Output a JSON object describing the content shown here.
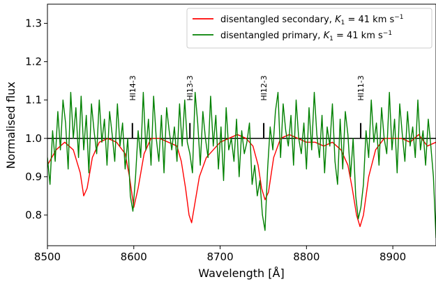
{
  "chart_data": {
    "type": "line",
    "title": "",
    "xlabel": "Wavelength [Å]",
    "ylabel": "Normalised flux",
    "xlim": [
      8500,
      8950
    ],
    "ylim": [
      0.72,
      1.35
    ],
    "xticks": [
      "8500",
      "8600",
      "8700",
      "8800",
      "8900"
    ],
    "xtick_values": [
      8500,
      8600,
      8700,
      8800,
      8900
    ],
    "yticks": [
      "0.8",
      "0.9",
      "1.0",
      "1.1",
      "1.2",
      "1.3"
    ],
    "ytick_values": [
      0.8,
      0.9,
      1.0,
      1.1,
      1.2,
      1.3
    ],
    "grid": false,
    "legend_position": "top-right",
    "reference_line": 1.0,
    "series": [
      {
        "name": "disentangled secondary, K₁ = 41 km s⁻¹",
        "color": "#ff0000",
        "x": [
          8500,
          8510,
          8520,
          8530,
          8538,
          8542,
          8546,
          8552,
          8560,
          8570,
          8580,
          8590,
          8595,
          8600,
          8605,
          8612,
          8620,
          8630,
          8640,
          8650,
          8655,
          8660,
          8664,
          8667,
          8670,
          8676,
          8684,
          8692,
          8700,
          8710,
          8720,
          8730,
          8738,
          8744,
          8748,
          8752,
          8756,
          8762,
          8770,
          8780,
          8790,
          8800,
          8810,
          8820,
          8830,
          8840,
          8848,
          8853,
          8858,
          8862,
          8866,
          8872,
          8880,
          8890,
          8900,
          8910,
          8920,
          8930,
          8940,
          8950
        ],
        "y": [
          0.93,
          0.97,
          0.99,
          0.97,
          0.91,
          0.85,
          0.87,
          0.95,
          0.99,
          1.0,
          0.99,
          0.96,
          0.9,
          0.82,
          0.87,
          0.96,
          1.0,
          1.0,
          0.99,
          0.98,
          0.94,
          0.87,
          0.8,
          0.78,
          0.82,
          0.9,
          0.95,
          0.97,
          0.99,
          1.0,
          1.01,
          1.0,
          0.98,
          0.93,
          0.87,
          0.84,
          0.86,
          0.95,
          1.0,
          1.01,
          1.0,
          0.99,
          0.99,
          0.98,
          0.99,
          0.97,
          0.93,
          0.87,
          0.8,
          0.77,
          0.8,
          0.9,
          0.97,
          1.0,
          1.0,
          1.0,
          0.99,
          1.01,
          0.98,
          0.99
        ]
      },
      {
        "name": "disentangled primary, K₁ = 41 km s⁻¹",
        "color": "#008000",
        "x": [
          8500,
          8503,
          8506,
          8509,
          8512,
          8515,
          8518,
          8521,
          8524,
          8527,
          8530,
          8533,
          8536,
          8539,
          8542,
          8545,
          8548,
          8551,
          8554,
          8557,
          8560,
          8563,
          8566,
          8569,
          8572,
          8575,
          8578,
          8581,
          8584,
          8587,
          8590,
          8593,
          8596,
          8599,
          8602,
          8605,
          8608,
          8611,
          8614,
          8617,
          8620,
          8623,
          8626,
          8629,
          8632,
          8635,
          8638,
          8641,
          8644,
          8647,
          8650,
          8653,
          8656,
          8659,
          8662,
          8665,
          8668,
          8671,
          8674,
          8677,
          8680,
          8683,
          8686,
          8689,
          8692,
          8695,
          8698,
          8701,
          8704,
          8707,
          8710,
          8713,
          8716,
          8719,
          8722,
          8725,
          8728,
          8731,
          8734,
          8737,
          8740,
          8743,
          8746,
          8749,
          8752,
          8755,
          8758,
          8761,
          8764,
          8767,
          8770,
          8773,
          8776,
          8779,
          8782,
          8785,
          8788,
          8791,
          8794,
          8797,
          8800,
          8803,
          8806,
          8809,
          8812,
          8815,
          8818,
          8821,
          8824,
          8827,
          8830,
          8833,
          8836,
          8839,
          8842,
          8845,
          8848,
          8851,
          8854,
          8857,
          8860,
          8863,
          8866,
          8869,
          8872,
          8875,
          8878,
          8881,
          8884,
          8887,
          8890,
          8893,
          8896,
          8899,
          8902,
          8905,
          8908,
          8911,
          8914,
          8917,
          8920,
          8923,
          8926,
          8929,
          8932,
          8935,
          8938,
          8941,
          8944,
          8947,
          8950
        ],
        "y": [
          0.95,
          0.88,
          1.02,
          0.94,
          1.07,
          0.97,
          1.1,
          1.04,
          0.92,
          1.12,
          1.0,
          1.08,
          0.95,
          1.11,
          0.97,
          1.06,
          0.91,
          1.09,
          1.02,
          0.96,
          1.1,
          0.99,
          1.05,
          0.93,
          1.07,
          1.01,
          0.94,
          1.09,
          0.98,
          1.04,
          0.92,
          1.0,
          0.85,
          0.81,
          0.9,
          1.02,
          0.95,
          1.12,
          0.97,
          1.05,
          0.93,
          1.11,
          1.0,
          0.94,
          1.06,
          0.91,
          1.08,
          1.02,
          0.97,
          1.03,
          0.94,
          1.09,
          0.98,
          1.1,
          0.99,
          0.96,
          0.91,
          1.12,
          1.04,
          0.93,
          1.07,
          1.0,
          0.95,
          1.11,
          0.98,
          1.06,
          0.92,
          1.03,
          0.89,
          1.08,
          0.97,
          1.0,
          0.94,
          1.05,
          0.9,
          1.02,
          0.96,
          0.99,
          1.04,
          0.88,
          0.93,
          0.85,
          0.89,
          0.8,
          0.76,
          0.92,
          1.03,
          0.97,
          1.07,
          1.12,
          0.95,
          1.09,
          1.02,
          0.98,
          1.06,
          0.93,
          1.1,
          1.0,
          0.96,
          1.04,
          0.92,
          1.08,
          0.97,
          1.12,
          1.01,
          0.95,
          1.06,
          0.91,
          1.03,
          0.98,
          1.09,
          0.94,
          0.88,
          1.05,
          0.92,
          1.07,
          1.01,
          0.9,
          1.0,
          0.85,
          0.79,
          0.82,
          0.88,
          1.02,
          0.95,
          1.1,
          0.99,
          1.04,
          0.93,
          1.08,
          1.0,
          0.96,
          1.12,
          0.97,
          1.05,
          0.91,
          1.09,
          1.01,
          0.94,
          1.07,
          0.98,
          1.03,
          0.95,
          1.1,
          0.97,
          1.02,
          0.93,
          1.05,
          0.98,
          0.9,
          0.74
        ]
      }
    ],
    "line_ids": [
      {
        "label": "HI14-3",
        "x": 8598.4
      },
      {
        "label": "HI13-3",
        "x": 8665.0
      },
      {
        "label": "HI12-3",
        "x": 8750.5
      },
      {
        "label": "HI11-3",
        "x": 8862.8
      }
    ],
    "line_id_marker_top": 1.04
  },
  "legend": {
    "entries": [
      {
        "prefix": "disentangled secondary, ",
        "k": "K",
        "sub": "1",
        "eq": " = 41 km s",
        "sup": "−1",
        "color": "#ff0000"
      },
      {
        "prefix": "disentangled primary, ",
        "k": "K",
        "sub": "1",
        "eq": " = 41 km s",
        "sup": "−1",
        "color": "#008000"
      }
    ]
  }
}
